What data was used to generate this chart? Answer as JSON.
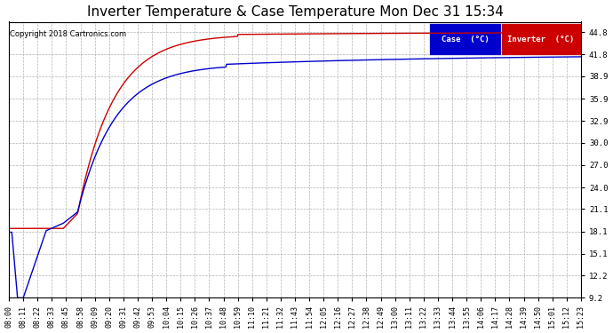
{
  "title": "Inverter Temperature & Case Temperature Mon Dec 31 15:34",
  "copyright": "Copyright 2018 Cartronics.com",
  "legend_case_label": "Case  (°C)",
  "legend_inverter_label": "Inverter  (°C)",
  "case_color": "#0000cc",
  "inverter_color": "#cc0000",
  "legend_case_bg": "#0000cc",
  "legend_inverter_bg": "#cc0000",
  "yticks": [
    9.2,
    12.2,
    15.1,
    18.1,
    21.1,
    24.0,
    27.0,
    30.0,
    32.9,
    35.9,
    38.9,
    41.8,
    44.8
  ],
  "ylim": [
    9.2,
    46.2
  ],
  "plot_bg_color": "#ffffff",
  "fig_bg_color": "#ffffff",
  "grid_color": "#aaaaaa",
  "x_tick_labels": [
    "08:00",
    "08:11",
    "08:22",
    "08:33",
    "08:45",
    "08:58",
    "09:09",
    "09:20",
    "09:31",
    "09:42",
    "09:53",
    "10:04",
    "10:15",
    "10:26",
    "10:37",
    "10:48",
    "10:59",
    "11:10",
    "11:21",
    "11:32",
    "11:43",
    "11:54",
    "12:05",
    "12:16",
    "12:27",
    "12:38",
    "12:49",
    "13:00",
    "13:11",
    "13:22",
    "13:33",
    "13:44",
    "13:55",
    "14:06",
    "14:17",
    "14:28",
    "14:39",
    "14:50",
    "15:01",
    "15:12",
    "15:23"
  ],
  "title_fontsize": 11,
  "tick_fontsize": 6,
  "copyright_fontsize": 6
}
